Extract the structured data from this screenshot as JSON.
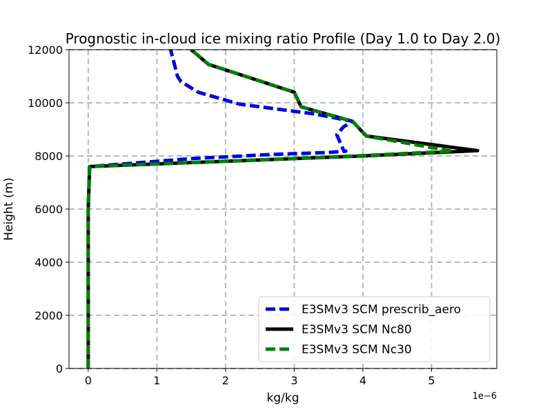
{
  "chart_data": {
    "type": "line",
    "title": "Prognostic in-cloud ice mixing ratio Profile (Day 1.0 to Day 2.0)",
    "xlabel": "kg/kg",
    "ylabel": "Height (m)",
    "x_offset_label": "1e−6",
    "xlim": [
      -0.28,
      5.95
    ],
    "ylim": [
      0,
      12000
    ],
    "x_ticks": [
      0,
      1,
      2,
      3,
      4,
      5
    ],
    "x_tick_labels": [
      "0",
      "1",
      "2",
      "3",
      "4",
      "5"
    ],
    "y_ticks": [
      0,
      2000,
      4000,
      6000,
      8000,
      10000,
      12000
    ],
    "y_tick_labels": [
      "0",
      "2000",
      "4000",
      "6000",
      "8000",
      "10000",
      "12000"
    ],
    "grid": true,
    "legend_position": "lower-right",
    "series": [
      {
        "name": "E3SMv3 SCM prescrib_aero",
        "color": "#0000dd",
        "style": "dashed",
        "x": [
          0,
          0,
          0,
          0.02,
          1.5,
          2.7,
          3.5,
          3.75,
          3.72,
          3.62,
          3.72,
          3.85,
          3.3,
          2.5,
          2.2,
          1.6,
          1.35,
          1.3,
          1.25,
          1.2
        ],
        "y": [
          0,
          3000,
          6000,
          7600,
          7900,
          8060,
          8130,
          8180,
          8200,
          8800,
          9100,
          9300,
          9580,
          9850,
          9950,
          10400,
          10800,
          11000,
          11500,
          12000
        ]
      },
      {
        "name": "E3SMv3 SCM Nc80",
        "color": "#000000",
        "style": "solid",
        "x": [
          0,
          0,
          0,
          0.02,
          2.0,
          4.0,
          5.67,
          4.05,
          3.85,
          3.1,
          3.0,
          1.75,
          1.5
        ],
        "y": [
          0,
          3000,
          6000,
          7600,
          7800,
          8000,
          8200,
          8750,
          9300,
          9850,
          10400,
          11450,
          12000
        ]
      },
      {
        "name": "E3SMv3 SCM Nc30",
        "color": "#008000",
        "style": "dashed",
        "x": [
          0,
          0,
          0,
          0.02,
          2.0,
          3.9,
          5.3,
          4.05,
          3.85,
          3.1,
          3.0,
          1.75,
          1.5
        ],
        "y": [
          0,
          3000,
          6000,
          7600,
          7800,
          8000,
          8180,
          8750,
          9300,
          9850,
          10400,
          11450,
          12000
        ]
      }
    ]
  }
}
